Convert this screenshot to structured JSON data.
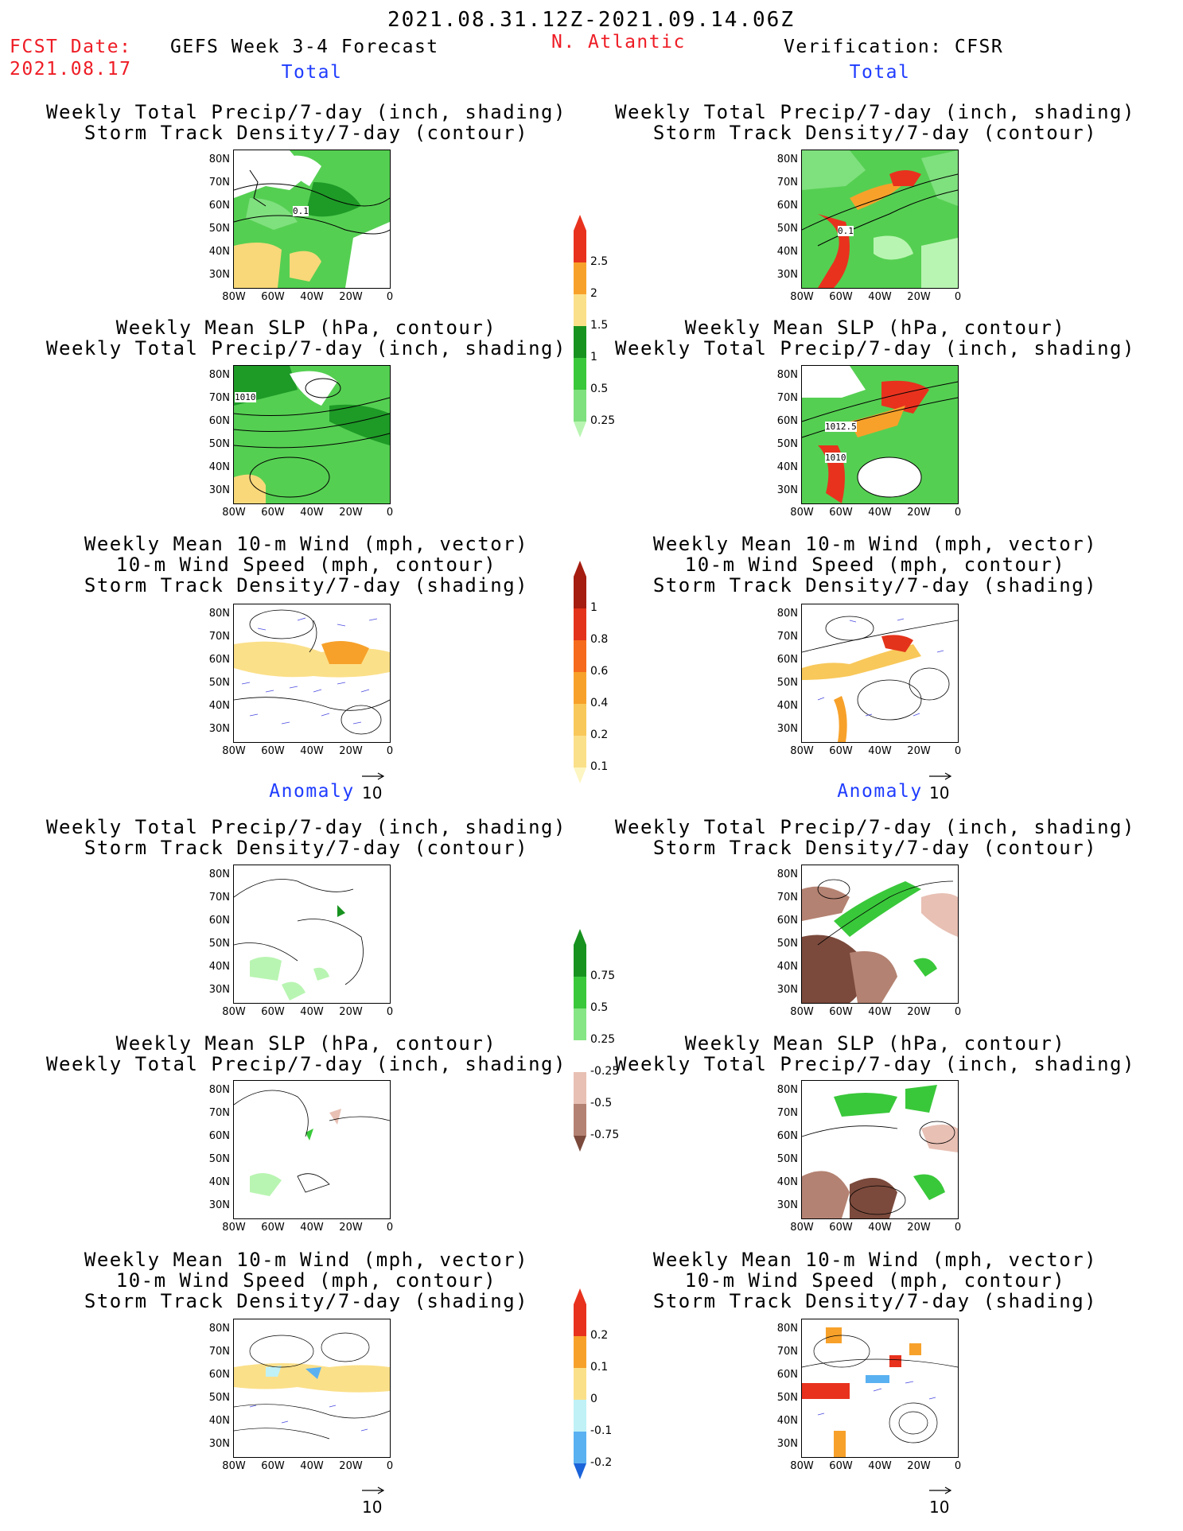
{
  "header": {
    "period": "2021.08.31.12Z-2021.09.14.06Z",
    "fcst_label": "FCST Date:",
    "fcst_date": "2021.08.17",
    "model": "GEFS Week 3-4 Forecast",
    "region": "N. Atlantic",
    "verification": "Verification: CFSR"
  },
  "sections": {
    "total": "Total",
    "anomaly": "Anomaly"
  },
  "titles": {
    "precip_storm": [
      "Weekly Total Precip/7-day (inch, shading)",
      "Storm Track Density/7-day (contour)"
    ],
    "slp_precip": [
      "Weekly Mean SLP (hPa, contour)",
      "Weekly Total Precip/7-day (inch, shading)"
    ],
    "wind_storm": [
      "Weekly Mean 10-m Wind (mph, vector)",
      "10-m Wind Speed (mph, contour)",
      "Storm Track Density/7-day (shading)"
    ]
  },
  "axes": {
    "lat_labels": [
      "80N",
      "70N",
      "60N",
      "50N",
      "40N",
      "30N"
    ],
    "lon_labels": [
      "80W",
      "60W",
      "40W",
      "20W",
      "0"
    ]
  },
  "vector_ref": "10",
  "contour_labels": {
    "gefs_precip_storm": "0.1",
    "cfsr_precip_storm": "0.1",
    "gefs_slp": "1010",
    "cfsr_slp_a": "1012.5",
    "cfsr_slp_b": "1010"
  },
  "colorbars": {
    "precip_total": {
      "labels": [
        "2.5",
        "2",
        "1.5",
        "1",
        "0.5",
        "0.25"
      ],
      "colors": [
        "#e8321e",
        "#f7a12a",
        "#fbe08a",
        "#17921f",
        "#39c83a",
        "#7fe07e",
        "#b9f5b2"
      ]
    },
    "storm_density": {
      "labels": [
        "1",
        "0.8",
        "0.6",
        "0.4",
        "0.2",
        "0.1"
      ],
      "colors": [
        "#a51d10",
        "#e3331a",
        "#f56a1c",
        "#f7a12a",
        "#f8c85a",
        "#fbe08a",
        "#fdf5c2"
      ]
    },
    "precip_anom": {
      "labels": [
        "0.75",
        "0.5",
        "0.25",
        "-0.25",
        "-0.5",
        "-0.75"
      ],
      "colors": [
        "#17921f",
        "#39c83a",
        "#86e585",
        "#ffffff",
        "#e8c0b4",
        "#b48272",
        "#7b4a3c"
      ]
    },
    "storm_anom": {
      "labels": [
        "0.2",
        "0.1",
        "0",
        "-0.1",
        "-0.2"
      ],
      "colors": [
        "#e8321e",
        "#f7a12a",
        "#fbe08a",
        "#bff1f7",
        "#5ab1f1",
        "#1b63d9"
      ]
    }
  }
}
